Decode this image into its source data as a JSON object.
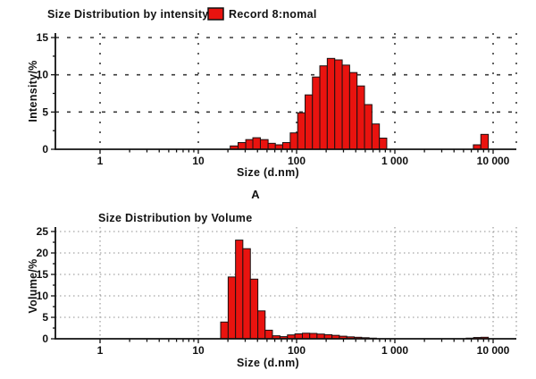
{
  "panel_label": "A",
  "colors": {
    "bar_fill": "#e9130f",
    "bar_stroke": "#1a1111",
    "axis": "#111111"
  },
  "chart_data": [
    {
      "type": "bar",
      "title": "Size Distribution by intensity",
      "legend_label": "Record 8:nomal",
      "legend_color": "#e9130f",
      "xlabel": "Size (d.nm)",
      "ylabel": "Intensity/%",
      "x_scale": "log",
      "xlim": [
        0.35,
        17000
      ],
      "ylim": [
        0,
        15
      ],
      "y_ticks": [
        0,
        5,
        10,
        15
      ],
      "x_ticks": [
        {
          "value": 1,
          "label": "1"
        },
        {
          "value": 10,
          "label": "10"
        },
        {
          "value": 100,
          "label": "100"
        },
        {
          "value": 1000,
          "label": "1 000"
        },
        {
          "value": 10000,
          "label": "10 000"
        }
      ],
      "grid": "dashed",
      "bars": [
        [
          23,
          0.45
        ],
        [
          28,
          0.9
        ],
        [
          33,
          1.3
        ],
        [
          39,
          1.55
        ],
        [
          47,
          1.3
        ],
        [
          56,
          0.8
        ],
        [
          66,
          0.6
        ],
        [
          79,
          0.9
        ],
        [
          94,
          2.2
        ],
        [
          112,
          4.9
        ],
        [
          133,
          7.3
        ],
        [
          158,
          9.7
        ],
        [
          188,
          11.2
        ],
        [
          224,
          12.2
        ],
        [
          267,
          12.0
        ],
        [
          318,
          11.3
        ],
        [
          378,
          10.3
        ],
        [
          450,
          8.5
        ],
        [
          536,
          6.0
        ],
        [
          638,
          3.4
        ],
        [
          759,
          1.5
        ],
        [
          6860,
          0.6
        ],
        [
          8200,
          2.0
        ]
      ]
    },
    {
      "type": "bar",
      "title": "Size Distribution by Volume",
      "xlabel": "Size (d.nm)",
      "ylabel": "Volume/%",
      "x_scale": "log",
      "xlim": [
        0.35,
        17000
      ],
      "ylim": [
        0,
        25
      ],
      "y_ticks": [
        0,
        5,
        10,
        15,
        20,
        25
      ],
      "x_ticks": [
        {
          "value": 1,
          "label": "1"
        },
        {
          "value": 10,
          "label": "10"
        },
        {
          "value": 100,
          "label": "100"
        },
        {
          "value": 1000,
          "label": "1 000"
        },
        {
          "value": 10000,
          "label": "10 000"
        }
      ],
      "grid": "dotted",
      "bars": [
        [
          18.4,
          3.9
        ],
        [
          22,
          14.4
        ],
        [
          26,
          23.0
        ],
        [
          31,
          21.0
        ],
        [
          37,
          13.9
        ],
        [
          44,
          6.5
        ],
        [
          52,
          2.0
        ],
        [
          62,
          0.7
        ],
        [
          74,
          0.5
        ],
        [
          88,
          0.9
        ],
        [
          105,
          1.15
        ],
        [
          125,
          1.3
        ],
        [
          148,
          1.25
        ],
        [
          176,
          1.1
        ],
        [
          210,
          0.95
        ],
        [
          250,
          0.8
        ],
        [
          297,
          0.6
        ],
        [
          354,
          0.45
        ],
        [
          421,
          0.35
        ],
        [
          501,
          0.25
        ],
        [
          596,
          0.15
        ],
        [
          5800,
          0.15
        ],
        [
          6900,
          0.3
        ],
        [
          8200,
          0.35
        ]
      ]
    }
  ]
}
